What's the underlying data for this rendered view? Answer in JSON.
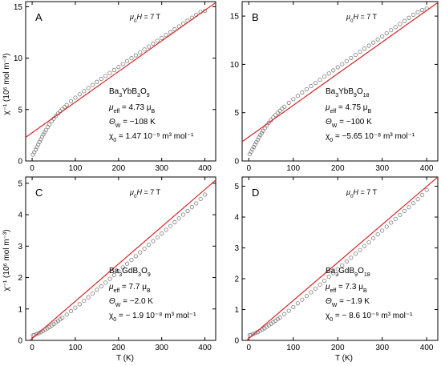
{
  "x_axis_label": "T (K)",
  "y_axis_label": "χ⁻¹ (10⁶ mol m⁻³)",
  "colors": {
    "fit": "#d62728",
    "data": "#7f7f7f",
    "axis": "#000000"
  },
  "chart_data": [
    {
      "type": "scatter",
      "panel": "A",
      "field": "μ0H = 7 T",
      "compound": "Ba3YbB3O9",
      "annotations": [
        "μeff = 4.73 μB",
        "ΘW = −108 K",
        "χ0 = 1.47 10⁻⁹ m³ mol⁻¹"
      ],
      "xlim": [
        -15,
        425
      ],
      "ylim": [
        0,
        15.5
      ],
      "xticks": [
        0,
        100,
        200,
        300,
        400
      ],
      "yticks": [
        0,
        5,
        10,
        15
      ],
      "data_series": {
        "x": [
          2,
          5,
          8,
          11,
          14,
          17,
          20,
          23,
          26,
          29,
          32,
          36,
          40,
          45,
          50,
          55,
          60,
          65,
          70,
          75,
          80,
          90,
          100,
          110,
          120,
          130,
          140,
          150,
          160,
          170,
          180,
          190,
          200,
          210,
          220,
          230,
          240,
          250,
          260,
          270,
          280,
          290,
          300,
          310,
          320,
          330,
          340,
          350,
          360,
          370,
          380,
          390,
          400
        ],
        "y": [
          0.62,
          0.85,
          1.1,
          1.35,
          1.6,
          1.85,
          2.1,
          2.35,
          2.58,
          2.8,
          3.02,
          3.3,
          3.55,
          3.85,
          4.12,
          4.38,
          4.62,
          4.84,
          5.05,
          5.25,
          5.45,
          5.82,
          6.16,
          6.48,
          6.79,
          7.09,
          7.39,
          7.69,
          7.98,
          8.27,
          8.56,
          8.85,
          9.14,
          9.43,
          9.71,
          10.0,
          10.28,
          10.56,
          10.85,
          11.13,
          11.41,
          11.69,
          11.97,
          12.25,
          12.53,
          12.81,
          13.09,
          13.37,
          13.65,
          13.93,
          14.21,
          14.49,
          14.6
        ]
      },
      "fit_line": {
        "x": [
          -15,
          425
        ],
        "y": [
          2.3,
          15.4
        ]
      }
    },
    {
      "type": "scatter",
      "panel": "B",
      "field": "μ0H = 7 T",
      "compound": "Ba3YbB9O18",
      "annotations": [
        "μeff = 4.75 μB",
        "ΘW = −100 K",
        "χ0 = −5.65 10⁻⁸ m³ mol⁻¹"
      ],
      "xlim": [
        -15,
        425
      ],
      "ylim": [
        0,
        16.5
      ],
      "xticks": [
        0,
        100,
        200,
        300,
        400
      ],
      "yticks": [
        0,
        5,
        10,
        15
      ],
      "data_series": {
        "x": [
          2,
          5,
          8,
          11,
          14,
          17,
          20,
          23,
          26,
          29,
          32,
          36,
          40,
          45,
          50,
          55,
          60,
          65,
          70,
          75,
          80,
          90,
          100,
          110,
          120,
          130,
          140,
          150,
          160,
          170,
          180,
          190,
          200,
          210,
          220,
          230,
          240,
          250,
          260,
          270,
          280,
          290,
          300,
          310,
          320,
          330,
          340,
          350,
          360,
          370,
          380,
          390,
          400
        ],
        "y": [
          0.7,
          0.95,
          1.2,
          1.45,
          1.7,
          1.95,
          2.2,
          2.45,
          2.68,
          2.9,
          3.12,
          3.4,
          3.66,
          3.96,
          4.24,
          4.5,
          4.75,
          4.98,
          5.2,
          5.42,
          5.62,
          6.02,
          6.4,
          6.75,
          7.09,
          7.42,
          7.75,
          8.08,
          8.41,
          8.73,
          9.06,
          9.38,
          9.7,
          10.02,
          10.34,
          10.66,
          10.98,
          11.3,
          11.62,
          11.94,
          12.26,
          12.58,
          12.9,
          13.22,
          13.54,
          13.86,
          14.18,
          14.5,
          14.82,
          15.14,
          15.4,
          15.62,
          15.8
        ]
      },
      "fit_line": {
        "x": [
          -15,
          425
        ],
        "y": [
          2.0,
          16.4
        ]
      }
    },
    {
      "type": "scatter",
      "panel": "C",
      "field": "μ0H = 7 T",
      "compound": "Ba3GdB3O9",
      "annotations": [
        "μeff = 7.7 μB",
        "ΘW = −2.0 K",
        "χ0 = − 1.9 10⁻⁸ m³ mol⁻¹"
      ],
      "xlim": [
        -15,
        425
      ],
      "ylim": [
        0,
        5.2
      ],
      "xticks": [
        0,
        100,
        200,
        300,
        400
      ],
      "yticks": [
        0,
        1,
        2,
        3,
        4,
        5
      ],
      "data_series": {
        "x": [
          2,
          5,
          10,
          15,
          20,
          25,
          30,
          35,
          40,
          45,
          50,
          55,
          60,
          65,
          70,
          80,
          90,
          100,
          110,
          120,
          130,
          140,
          150,
          160,
          170,
          180,
          190,
          200,
          210,
          220,
          230,
          240,
          250,
          260,
          270,
          280,
          290,
          300,
          310,
          320,
          330,
          340,
          350,
          360,
          370,
          380,
          390,
          400
        ],
        "y": [
          0.16,
          0.17,
          0.2,
          0.23,
          0.26,
          0.3,
          0.34,
          0.38,
          0.42,
          0.47,
          0.52,
          0.57,
          0.62,
          0.67,
          0.72,
          0.82,
          0.93,
          1.04,
          1.15,
          1.26,
          1.37,
          1.49,
          1.61,
          1.72,
          1.84,
          1.96,
          2.08,
          2.2,
          2.32,
          2.44,
          2.56,
          2.68,
          2.8,
          2.92,
          3.04,
          3.16,
          3.28,
          3.4,
          3.52,
          3.64,
          3.76,
          3.88,
          4.0,
          4.12,
          4.24,
          4.36,
          4.5,
          4.64
        ]
      },
      "fit_line": {
        "x": [
          -5,
          425
        ],
        "y": [
          0.0,
          5.1
        ]
      }
    },
    {
      "type": "scatter",
      "panel": "D",
      "field": "μ0H = 7 T",
      "compound": "Ba3GdB9O18",
      "annotations": [
        "μeff = 7.3 μB",
        "ΘW = −1.9 K",
        "χ0 = − 8.6 10⁻⁹ m³ mol⁻¹"
      ],
      "xlim": [
        -15,
        425
      ],
      "ylim": [
        0,
        5.3
      ],
      "xticks": [
        0,
        100,
        200,
        300,
        400
      ],
      "yticks": [
        0,
        1,
        2,
        3,
        4,
        5
      ],
      "data_series": {
        "x": [
          2,
          5,
          10,
          15,
          20,
          25,
          30,
          35,
          40,
          45,
          50,
          55,
          60,
          65,
          70,
          80,
          90,
          100,
          110,
          120,
          130,
          140,
          150,
          160,
          170,
          180,
          190,
          200,
          210,
          220,
          230,
          240,
          250,
          260,
          270,
          280,
          290,
          300,
          310,
          320,
          330,
          340,
          350,
          360,
          370,
          380,
          390,
          400
        ],
        "y": [
          0.17,
          0.18,
          0.21,
          0.24,
          0.27,
          0.31,
          0.35,
          0.39,
          0.44,
          0.49,
          0.54,
          0.59,
          0.64,
          0.69,
          0.74,
          0.85,
          0.96,
          1.08,
          1.2,
          1.32,
          1.44,
          1.56,
          1.68,
          1.81,
          1.93,
          2.06,
          2.18,
          2.31,
          2.43,
          2.56,
          2.68,
          2.81,
          2.93,
          3.06,
          3.18,
          3.31,
          3.44,
          3.56,
          3.69,
          3.82,
          3.94,
          4.07,
          4.2,
          4.32,
          4.45,
          4.58,
          4.72,
          4.88
        ]
      },
      "fit_line": {
        "x": [
          -5,
          425
        ],
        "y": [
          0.0,
          5.3
        ]
      }
    }
  ]
}
